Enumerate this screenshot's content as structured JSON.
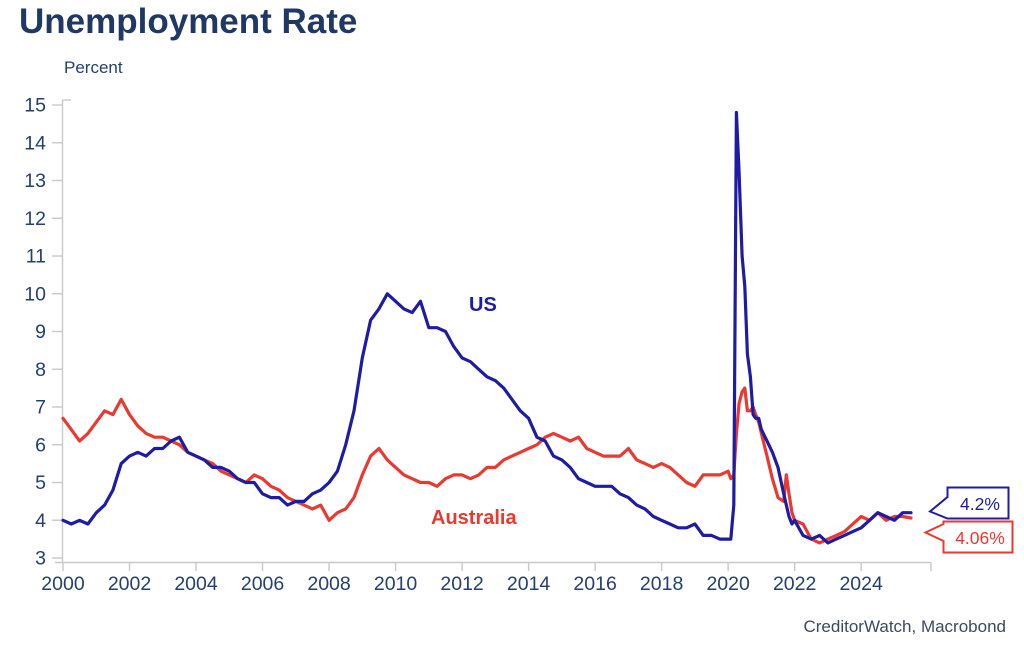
{
  "title": "Unemployment Rate",
  "y_axis_unit_label": "Percent",
  "footer": {
    "source": "CreditorWatch, Macrobond"
  },
  "colors": {
    "us_line": "#1e1ca3",
    "australia_line": "#e83a30",
    "title_text": "#1f3864",
    "axis_text": "#24406e",
    "axis_line": "#c9c9c9",
    "callout_us_border": "#1e1ca3",
    "callout_australia_border": "#e83a30",
    "background": "#ffffff"
  },
  "callouts": {
    "us_value": "4.2%",
    "australia_value": "4.06%"
  },
  "chart_data": {
    "type": "line",
    "title": "Unemployment Rate",
    "ylabel": "Percent",
    "xlabel": "",
    "grid": false,
    "legend_position": "inline-labels",
    "ylim": [
      3,
      15
    ],
    "xlim": [
      2000,
      2026.1
    ],
    "yticks": [
      3,
      4,
      5,
      6,
      7,
      8,
      9,
      10,
      11,
      12,
      13,
      14,
      15
    ],
    "xticks": [
      2000,
      2002,
      2004,
      2006,
      2008,
      2010,
      2012,
      2014,
      2016,
      2018,
      2020,
      2022,
      2024
    ],
    "end_labels": [
      {
        "series": "US",
        "text": "4.2%"
      },
      {
        "series": "Australia",
        "text": "4.06%"
      }
    ],
    "series": [
      {
        "name": "US",
        "color": "#1e1ca3",
        "points": [
          [
            2000.0,
            4.0
          ],
          [
            2000.25,
            3.9
          ],
          [
            2000.5,
            4.0
          ],
          [
            2000.75,
            3.9
          ],
          [
            2001.0,
            4.2
          ],
          [
            2001.25,
            4.4
          ],
          [
            2001.5,
            4.8
          ],
          [
            2001.75,
            5.5
          ],
          [
            2002.0,
            5.7
          ],
          [
            2002.25,
            5.8
          ],
          [
            2002.5,
            5.7
          ],
          [
            2002.75,
            5.9
          ],
          [
            2003.0,
            5.9
          ],
          [
            2003.25,
            6.1
          ],
          [
            2003.5,
            6.2
          ],
          [
            2003.75,
            5.8
          ],
          [
            2004.0,
            5.7
          ],
          [
            2004.25,
            5.6
          ],
          [
            2004.5,
            5.4
          ],
          [
            2004.75,
            5.4
          ],
          [
            2005.0,
            5.3
          ],
          [
            2005.25,
            5.1
          ],
          [
            2005.5,
            5.0
          ],
          [
            2005.75,
            5.0
          ],
          [
            2006.0,
            4.7
          ],
          [
            2006.25,
            4.6
          ],
          [
            2006.5,
            4.6
          ],
          [
            2006.75,
            4.4
          ],
          [
            2007.0,
            4.5
          ],
          [
            2007.25,
            4.5
          ],
          [
            2007.5,
            4.7
          ],
          [
            2007.75,
            4.8
          ],
          [
            2008.0,
            5.0
          ],
          [
            2008.25,
            5.3
          ],
          [
            2008.5,
            6.0
          ],
          [
            2008.75,
            6.9
          ],
          [
            2009.0,
            8.3
          ],
          [
            2009.25,
            9.3
          ],
          [
            2009.5,
            9.6
          ],
          [
            2009.75,
            10.0
          ],
          [
            2010.0,
            9.8
          ],
          [
            2010.25,
            9.6
          ],
          [
            2010.5,
            9.5
          ],
          [
            2010.75,
            9.8
          ],
          [
            2011.0,
            9.1
          ],
          [
            2011.25,
            9.1
          ],
          [
            2011.5,
            9.0
          ],
          [
            2011.75,
            8.6
          ],
          [
            2012.0,
            8.3
          ],
          [
            2012.25,
            8.2
          ],
          [
            2012.5,
            8.0
          ],
          [
            2012.75,
            7.8
          ],
          [
            2013.0,
            7.7
          ],
          [
            2013.25,
            7.5
          ],
          [
            2013.5,
            7.2
          ],
          [
            2013.75,
            6.9
          ],
          [
            2014.0,
            6.7
          ],
          [
            2014.25,
            6.2
          ],
          [
            2014.5,
            6.1
          ],
          [
            2014.75,
            5.7
          ],
          [
            2015.0,
            5.6
          ],
          [
            2015.25,
            5.4
          ],
          [
            2015.5,
            5.1
          ],
          [
            2015.75,
            5.0
          ],
          [
            2016.0,
            4.9
          ],
          [
            2016.25,
            4.9
          ],
          [
            2016.5,
            4.9
          ],
          [
            2016.75,
            4.7
          ],
          [
            2017.0,
            4.6
          ],
          [
            2017.25,
            4.4
          ],
          [
            2017.5,
            4.3
          ],
          [
            2017.75,
            4.1
          ],
          [
            2018.0,
            4.0
          ],
          [
            2018.25,
            3.9
          ],
          [
            2018.5,
            3.8
          ],
          [
            2018.75,
            3.8
          ],
          [
            2019.0,
            3.9
          ],
          [
            2019.25,
            3.6
          ],
          [
            2019.5,
            3.6
          ],
          [
            2019.75,
            3.5
          ],
          [
            2020.0,
            3.5
          ],
          [
            2020.08,
            3.5
          ],
          [
            2020.17,
            4.4
          ],
          [
            2020.25,
            14.8
          ],
          [
            2020.33,
            13.2
          ],
          [
            2020.42,
            11.0
          ],
          [
            2020.5,
            10.2
          ],
          [
            2020.58,
            8.4
          ],
          [
            2020.67,
            7.8
          ],
          [
            2020.75,
            6.8
          ],
          [
            2020.83,
            6.7
          ],
          [
            2020.92,
            6.7
          ],
          [
            2021.0,
            6.4
          ],
          [
            2021.17,
            6.1
          ],
          [
            2021.33,
            5.8
          ],
          [
            2021.5,
            5.4
          ],
          [
            2021.67,
            4.7
          ],
          [
            2021.83,
            4.1
          ],
          [
            2021.92,
            3.9
          ],
          [
            2022.0,
            4.0
          ],
          [
            2022.25,
            3.6
          ],
          [
            2022.5,
            3.5
          ],
          [
            2022.75,
            3.6
          ],
          [
            2023.0,
            3.4
          ],
          [
            2023.25,
            3.5
          ],
          [
            2023.5,
            3.6
          ],
          [
            2023.75,
            3.7
          ],
          [
            2024.0,
            3.8
          ],
          [
            2024.25,
            4.0
          ],
          [
            2024.5,
            4.2
          ],
          [
            2024.75,
            4.1
          ],
          [
            2025.0,
            4.0
          ],
          [
            2025.25,
            4.2
          ],
          [
            2025.5,
            4.2
          ]
        ]
      },
      {
        "name": "Australia",
        "color": "#e83a30",
        "points": [
          [
            2000.0,
            6.7
          ],
          [
            2000.25,
            6.4
          ],
          [
            2000.5,
            6.1
          ],
          [
            2000.75,
            6.3
          ],
          [
            2001.0,
            6.6
          ],
          [
            2001.25,
            6.9
          ],
          [
            2001.5,
            6.8
          ],
          [
            2001.75,
            7.2
          ],
          [
            2002.0,
            6.8
          ],
          [
            2002.25,
            6.5
          ],
          [
            2002.5,
            6.3
          ],
          [
            2002.75,
            6.2
          ],
          [
            2003.0,
            6.2
          ],
          [
            2003.25,
            6.1
          ],
          [
            2003.5,
            6.0
          ],
          [
            2003.75,
            5.8
          ],
          [
            2004.0,
            5.7
          ],
          [
            2004.25,
            5.6
          ],
          [
            2004.5,
            5.5
          ],
          [
            2004.75,
            5.3
          ],
          [
            2005.0,
            5.2
          ],
          [
            2005.25,
            5.1
          ],
          [
            2005.5,
            5.0
          ],
          [
            2005.75,
            5.2
          ],
          [
            2006.0,
            5.1
          ],
          [
            2006.25,
            4.9
          ],
          [
            2006.5,
            4.8
          ],
          [
            2006.75,
            4.6
          ],
          [
            2007.0,
            4.5
          ],
          [
            2007.25,
            4.4
          ],
          [
            2007.5,
            4.3
          ],
          [
            2007.75,
            4.4
          ],
          [
            2008.0,
            4.0
          ],
          [
            2008.25,
            4.2
          ],
          [
            2008.5,
            4.3
          ],
          [
            2008.75,
            4.6
          ],
          [
            2009.0,
            5.2
          ],
          [
            2009.25,
            5.7
          ],
          [
            2009.5,
            5.9
          ],
          [
            2009.75,
            5.6
          ],
          [
            2010.0,
            5.4
          ],
          [
            2010.25,
            5.2
          ],
          [
            2010.5,
            5.1
          ],
          [
            2010.75,
            5.0
          ],
          [
            2011.0,
            5.0
          ],
          [
            2011.25,
            4.9
          ],
          [
            2011.5,
            5.1
          ],
          [
            2011.75,
            5.2
          ],
          [
            2012.0,
            5.2
          ],
          [
            2012.25,
            5.1
          ],
          [
            2012.5,
            5.2
          ],
          [
            2012.75,
            5.4
          ],
          [
            2013.0,
            5.4
          ],
          [
            2013.25,
            5.6
          ],
          [
            2013.5,
            5.7
          ],
          [
            2013.75,
            5.8
          ],
          [
            2014.0,
            5.9
          ],
          [
            2014.25,
            6.0
          ],
          [
            2014.5,
            6.2
          ],
          [
            2014.75,
            6.3
          ],
          [
            2015.0,
            6.2
          ],
          [
            2015.25,
            6.1
          ],
          [
            2015.5,
            6.2
          ],
          [
            2015.75,
            5.9
          ],
          [
            2016.0,
            5.8
          ],
          [
            2016.25,
            5.7
          ],
          [
            2016.5,
            5.7
          ],
          [
            2016.75,
            5.7
          ],
          [
            2017.0,
            5.9
          ],
          [
            2017.25,
            5.6
          ],
          [
            2017.5,
            5.5
          ],
          [
            2017.75,
            5.4
          ],
          [
            2018.0,
            5.5
          ],
          [
            2018.25,
            5.4
          ],
          [
            2018.5,
            5.2
          ],
          [
            2018.75,
            5.0
          ],
          [
            2019.0,
            4.9
          ],
          [
            2019.25,
            5.2
          ],
          [
            2019.5,
            5.2
          ],
          [
            2019.75,
            5.2
          ],
          [
            2020.0,
            5.3
          ],
          [
            2020.08,
            5.1
          ],
          [
            2020.17,
            5.2
          ],
          [
            2020.25,
            6.3
          ],
          [
            2020.33,
            7.1
          ],
          [
            2020.42,
            7.4
          ],
          [
            2020.5,
            7.5
          ],
          [
            2020.58,
            6.9
          ],
          [
            2020.67,
            6.9
          ],
          [
            2020.75,
            7.0
          ],
          [
            2020.83,
            6.8
          ],
          [
            2020.92,
            6.6
          ],
          [
            2021.0,
            6.3
          ],
          [
            2021.17,
            5.7
          ],
          [
            2021.33,
            5.1
          ],
          [
            2021.5,
            4.6
          ],
          [
            2021.67,
            4.5
          ],
          [
            2021.75,
            5.2
          ],
          [
            2021.83,
            4.7
          ],
          [
            2021.92,
            4.2
          ],
          [
            2022.0,
            4.0
          ],
          [
            2022.25,
            3.9
          ],
          [
            2022.5,
            3.5
          ],
          [
            2022.75,
            3.4
          ],
          [
            2023.0,
            3.5
          ],
          [
            2023.25,
            3.6
          ],
          [
            2023.5,
            3.7
          ],
          [
            2023.75,
            3.9
          ],
          [
            2024.0,
            4.1
          ],
          [
            2024.25,
            4.0
          ],
          [
            2024.5,
            4.2
          ],
          [
            2024.75,
            4.0
          ],
          [
            2025.0,
            4.1
          ],
          [
            2025.25,
            4.1
          ],
          [
            2025.5,
            4.06
          ]
        ]
      }
    ]
  }
}
